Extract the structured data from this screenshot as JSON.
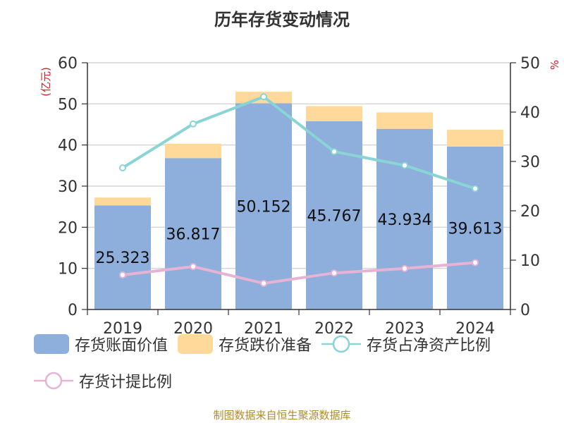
{
  "chart_data": {
    "type": "bar",
    "title": "历年存货变动情况",
    "categories": [
      "2019",
      "2020",
      "2021",
      "2022",
      "2023",
      "2024"
    ],
    "left_axis": {
      "label": "(亿元)",
      "ylim": [
        0,
        60
      ],
      "ticks": [
        0,
        10,
        20,
        30,
        40,
        50,
        60
      ]
    },
    "right_axis": {
      "label": "%",
      "ylim": [
        0,
        50
      ],
      "ticks": [
        0,
        10,
        20,
        30,
        40,
        50
      ]
    },
    "series": [
      {
        "name": "存货账面价值",
        "type": "bar",
        "axis": "left",
        "color": "#8eaedb",
        "values": [
          25.323,
          36.817,
          50.152,
          45.767,
          43.934,
          39.613
        ],
        "labels": [
          "25.323",
          "36.817",
          "50.152",
          "45.767",
          "43.934",
          "39.613"
        ]
      },
      {
        "name": "存货跌价准备",
        "type": "bar",
        "stack_on": "存货账面价值",
        "axis": "left",
        "color": "#ffd99a",
        "values": [
          1.9,
          3.5,
          2.8,
          3.7,
          4.0,
          4.1
        ]
      },
      {
        "name": "存货占净资产比例",
        "type": "line",
        "axis": "right",
        "color": "#89d4d4",
        "values": [
          28.7,
          37.6,
          43.1,
          32.0,
          29.2,
          24.5
        ]
      },
      {
        "name": "存货计提比例",
        "type": "line",
        "axis": "right",
        "color": "#e7b3d4",
        "values": [
          7.0,
          8.7,
          5.3,
          7.4,
          8.3,
          9.5
        ]
      }
    ],
    "grid": true,
    "legend_position": "bottom",
    "source": "制图数据来自恒生聚源数据库"
  }
}
